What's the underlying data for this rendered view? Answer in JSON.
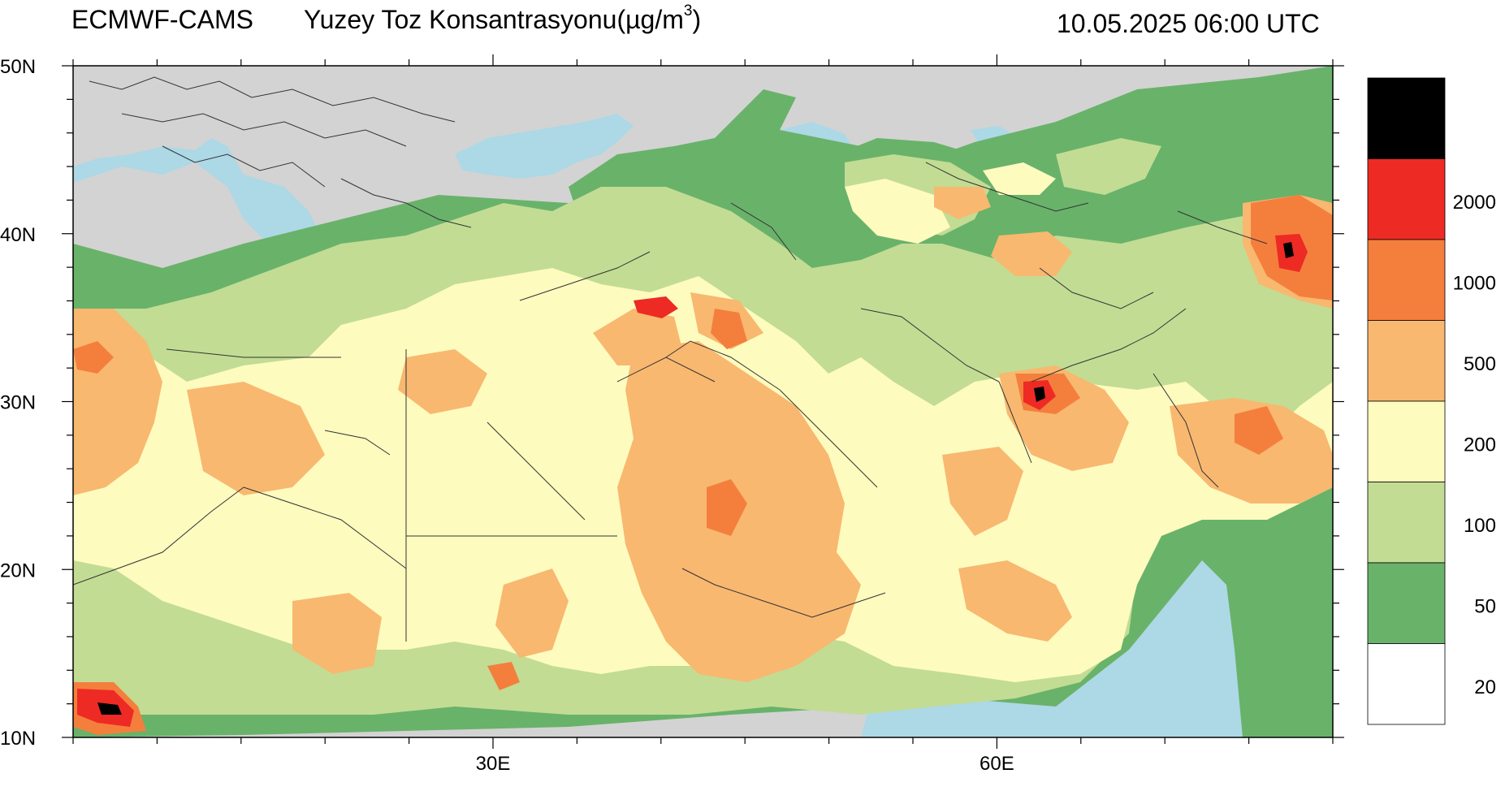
{
  "header": {
    "model": "ECMWF-CAMS",
    "parameter": "Yuzey Toz Konsantrasyonu(",
    "unit_base": "µg/m",
    "unit_exp": "3",
    "unit_close": ")",
    "valid_time": "10.05.2025 06:00 UTC"
  },
  "map": {
    "lat_range": [
      10,
      50
    ],
    "lon_range": [
      5,
      80
    ],
    "lat_labels": [
      {
        "lat": 50,
        "text": "50N"
      },
      {
        "lat": 40,
        "text": "40N"
      },
      {
        "lat": 30,
        "text": "30N"
      },
      {
        "lat": 20,
        "text": "20N"
      },
      {
        "lat": 10,
        "text": "10N"
      }
    ],
    "lon_labels": [
      {
        "lon": 30,
        "text": "30E"
      },
      {
        "lon": 60,
        "text": "60E"
      }
    ],
    "colors": {
      "land_nodata": "#d3d3d3",
      "water": "#add8e6",
      "border": "#333333"
    }
  },
  "legend": {
    "levels": [
      {
        "color": "#000000",
        "label": ""
      },
      {
        "color": "#ee2a24",
        "label": "2000"
      },
      {
        "color": "#f47f3d",
        "label": "1000"
      },
      {
        "color": "#f8b870",
        "label": "500"
      },
      {
        "color": "#fefbbf",
        "label": "200"
      },
      {
        "color": "#c2dc94",
        "label": "100"
      },
      {
        "color": "#69b26a",
        "label": "50"
      },
      {
        "color": "#ffffff",
        "label": "20"
      }
    ]
  }
}
